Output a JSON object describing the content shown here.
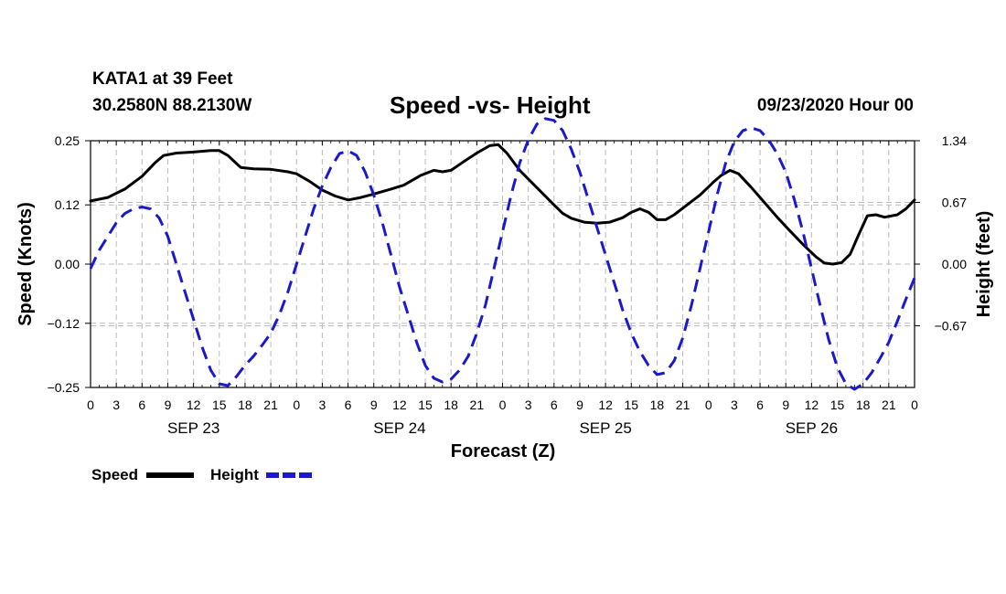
{
  "header": {
    "station": "KATA1 at 39 Feet",
    "coords": "30.2580N 88.2130W",
    "title": "Speed -vs- Height",
    "date": "09/23/2020 Hour 00"
  },
  "chart_data": {
    "type": "line",
    "title": "Speed -vs- Height",
    "xlabel": "Forecast (Z)",
    "ylabel": "Speed (Knots)",
    "y2label": "Height (feet)",
    "xlim": [
      0,
      96
    ],
    "ylim": [
      -0.25,
      0.25
    ],
    "y2lim": [
      -1.34,
      1.34
    ],
    "grid": true,
    "x_ticks": [
      0,
      3,
      6,
      9,
      12,
      15,
      18,
      21,
      24,
      27,
      30,
      33,
      36,
      39,
      42,
      45,
      48,
      51,
      54,
      57,
      60,
      63,
      66,
      69,
      72,
      75,
      78,
      81,
      84,
      87,
      90,
      93,
      96
    ],
    "x_tick_labels": [
      "0",
      "3",
      "6",
      "9",
      "12",
      "15",
      "18",
      "21",
      "0",
      "3",
      "6",
      "9",
      "12",
      "15",
      "18",
      "21",
      "0",
      "3",
      "6",
      "9",
      "12",
      "15",
      "18",
      "21",
      "0",
      "3",
      "6",
      "9",
      "12",
      "15",
      "18",
      "21",
      "0"
    ],
    "day_labels": [
      {
        "label": "SEP 23",
        "x": 12
      },
      {
        "label": "SEP 24",
        "x": 36
      },
      {
        "label": "SEP 25",
        "x": 60
      },
      {
        "label": "SEP 26",
        "x": 84
      }
    ],
    "y_ticks": [
      -0.25,
      -0.12,
      0.0,
      0.12,
      0.25
    ],
    "y_tick_labels": [
      "−0.25",
      "−0.12",
      "0.00",
      "0.12",
      "0.25"
    ],
    "y2_ticks": [
      -0.67,
      0.0,
      0.67,
      1.34
    ],
    "y2_tick_labels": [
      "−0.67",
      "0.00",
      "0.67",
      "1.34"
    ],
    "legend": [
      {
        "label": "Speed",
        "color": "#000000",
        "dash": false
      },
      {
        "label": "Height",
        "color": "#1a1acc",
        "dash": true
      }
    ],
    "series": [
      {
        "name": "Speed",
        "axis": "left",
        "color": "#000000",
        "points": [
          [
            0,
            0.128
          ],
          [
            2,
            0.135
          ],
          [
            4,
            0.152
          ],
          [
            6,
            0.178
          ],
          [
            7.5,
            0.205
          ],
          [
            8.5,
            0.22
          ],
          [
            10,
            0.225
          ],
          [
            12,
            0.227
          ],
          [
            14,
            0.23
          ],
          [
            15,
            0.23
          ],
          [
            16,
            0.22
          ],
          [
            17.5,
            0.196
          ],
          [
            19,
            0.193
          ],
          [
            21,
            0.192
          ],
          [
            23,
            0.187
          ],
          [
            24,
            0.183
          ],
          [
            25.5,
            0.168
          ],
          [
            27,
            0.15
          ],
          [
            28.5,
            0.138
          ],
          [
            30,
            0.13
          ],
          [
            31.5,
            0.135
          ],
          [
            33,
            0.142
          ],
          [
            35,
            0.152
          ],
          [
            36.5,
            0.16
          ],
          [
            38.5,
            0.18
          ],
          [
            40,
            0.19
          ],
          [
            41,
            0.187
          ],
          [
            42,
            0.19
          ],
          [
            43.5,
            0.208
          ],
          [
            45,
            0.225
          ],
          [
            46.5,
            0.24
          ],
          [
            47.5,
            0.242
          ],
          [
            48.5,
            0.225
          ],
          [
            50,
            0.19
          ],
          [
            52,
            0.155
          ],
          [
            54,
            0.12
          ],
          [
            55,
            0.103
          ],
          [
            56,
            0.093
          ],
          [
            57.5,
            0.085
          ],
          [
            59,
            0.083
          ],
          [
            60.5,
            0.085
          ],
          [
            62,
            0.094
          ],
          [
            63,
            0.105
          ],
          [
            64,
            0.112
          ],
          [
            65,
            0.105
          ],
          [
            66,
            0.09
          ],
          [
            67,
            0.09
          ],
          [
            68,
            0.1
          ],
          [
            69.5,
            0.12
          ],
          [
            71,
            0.14
          ],
          [
            72.5,
            0.165
          ],
          [
            73.5,
            0.18
          ],
          [
            74.5,
            0.19
          ],
          [
            75.5,
            0.183
          ],
          [
            77,
            0.155
          ],
          [
            78.5,
            0.125
          ],
          [
            80,
            0.095
          ],
          [
            81.5,
            0.067
          ],
          [
            83,
            0.04
          ],
          [
            84.5,
            0.015
          ],
          [
            85.5,
            0.002
          ],
          [
            86.5,
            0.0
          ],
          [
            87.5,
            0.003
          ],
          [
            88.5,
            0.02
          ],
          [
            89.5,
            0.06
          ],
          [
            90.5,
            0.098
          ],
          [
            91.5,
            0.1
          ],
          [
            92.5,
            0.095
          ],
          [
            94,
            0.1
          ],
          [
            95,
            0.112
          ],
          [
            96,
            0.13
          ]
        ]
      },
      {
        "name": "Height",
        "axis": "right",
        "color": "#1a1acc",
        "points": [
          [
            0,
            -0.05
          ],
          [
            1,
            0.15
          ],
          [
            2,
            0.3
          ],
          [
            3,
            0.45
          ],
          [
            4,
            0.55
          ],
          [
            5,
            0.6
          ],
          [
            6,
            0.62
          ],
          [
            7,
            0.6
          ],
          [
            8,
            0.5
          ],
          [
            9,
            0.3
          ],
          [
            10,
            0.0
          ],
          [
            11,
            -0.3
          ],
          [
            12,
            -0.6
          ],
          [
            13,
            -0.9
          ],
          [
            14,
            -1.15
          ],
          [
            15,
            -1.3
          ],
          [
            16,
            -1.32
          ],
          [
            17,
            -1.22
          ],
          [
            18,
            -1.1
          ],
          [
            19,
            -1.0
          ],
          [
            20,
            -0.88
          ],
          [
            21,
            -0.75
          ],
          [
            22,
            -0.55
          ],
          [
            23,
            -0.3
          ],
          [
            24,
            0.0
          ],
          [
            25,
            0.3
          ],
          [
            26,
            0.6
          ],
          [
            27,
            0.85
          ],
          [
            28,
            1.05
          ],
          [
            29,
            1.2
          ],
          [
            30,
            1.23
          ],
          [
            31,
            1.18
          ],
          [
            32,
            1.0
          ],
          [
            33,
            0.75
          ],
          [
            34,
            0.45
          ],
          [
            35,
            0.1
          ],
          [
            36,
            -0.25
          ],
          [
            37,
            -0.55
          ],
          [
            38,
            -0.85
          ],
          [
            39,
            -1.1
          ],
          [
            40,
            -1.24
          ],
          [
            41,
            -1.28
          ],
          [
            42,
            -1.25
          ],
          [
            43,
            -1.15
          ],
          [
            44,
            -1.0
          ],
          [
            45,
            -0.75
          ],
          [
            46,
            -0.45
          ],
          [
            47,
            -0.05
          ],
          [
            48,
            0.35
          ],
          [
            49,
            0.75
          ],
          [
            50,
            1.1
          ],
          [
            51,
            1.35
          ],
          [
            52,
            1.52
          ],
          [
            53,
            1.58
          ],
          [
            54,
            1.56
          ],
          [
            55,
            1.45
          ],
          [
            56,
            1.25
          ],
          [
            57,
            1.0
          ],
          [
            58,
            0.7
          ],
          [
            59,
            0.4
          ],
          [
            60,
            0.1
          ],
          [
            61,
            -0.2
          ],
          [
            62,
            -0.5
          ],
          [
            63,
            -0.75
          ],
          [
            64,
            -0.95
          ],
          [
            65,
            -1.1
          ],
          [
            66,
            -1.2
          ],
          [
            67,
            -1.18
          ],
          [
            68,
            -1.05
          ],
          [
            69,
            -0.8
          ],
          [
            70,
            -0.45
          ],
          [
            71,
            -0.05
          ],
          [
            72,
            0.35
          ],
          [
            73,
            0.75
          ],
          [
            74,
            1.1
          ],
          [
            75,
            1.33
          ],
          [
            76,
            1.45
          ],
          [
            77,
            1.48
          ],
          [
            78,
            1.45
          ],
          [
            79,
            1.35
          ],
          [
            80,
            1.2
          ],
          [
            81,
            1.0
          ],
          [
            82,
            0.7
          ],
          [
            83,
            0.35
          ],
          [
            84,
            -0.05
          ],
          [
            85,
            -0.45
          ],
          [
            86,
            -0.82
          ],
          [
            87,
            -1.12
          ],
          [
            88,
            -1.3
          ],
          [
            89,
            -1.36
          ],
          [
            90,
            -1.3
          ],
          [
            91,
            -1.18
          ],
          [
            92,
            -1.02
          ],
          [
            93,
            -0.85
          ],
          [
            94,
            -0.62
          ],
          [
            95,
            -0.38
          ],
          [
            96,
            -0.15
          ]
        ]
      }
    ]
  }
}
